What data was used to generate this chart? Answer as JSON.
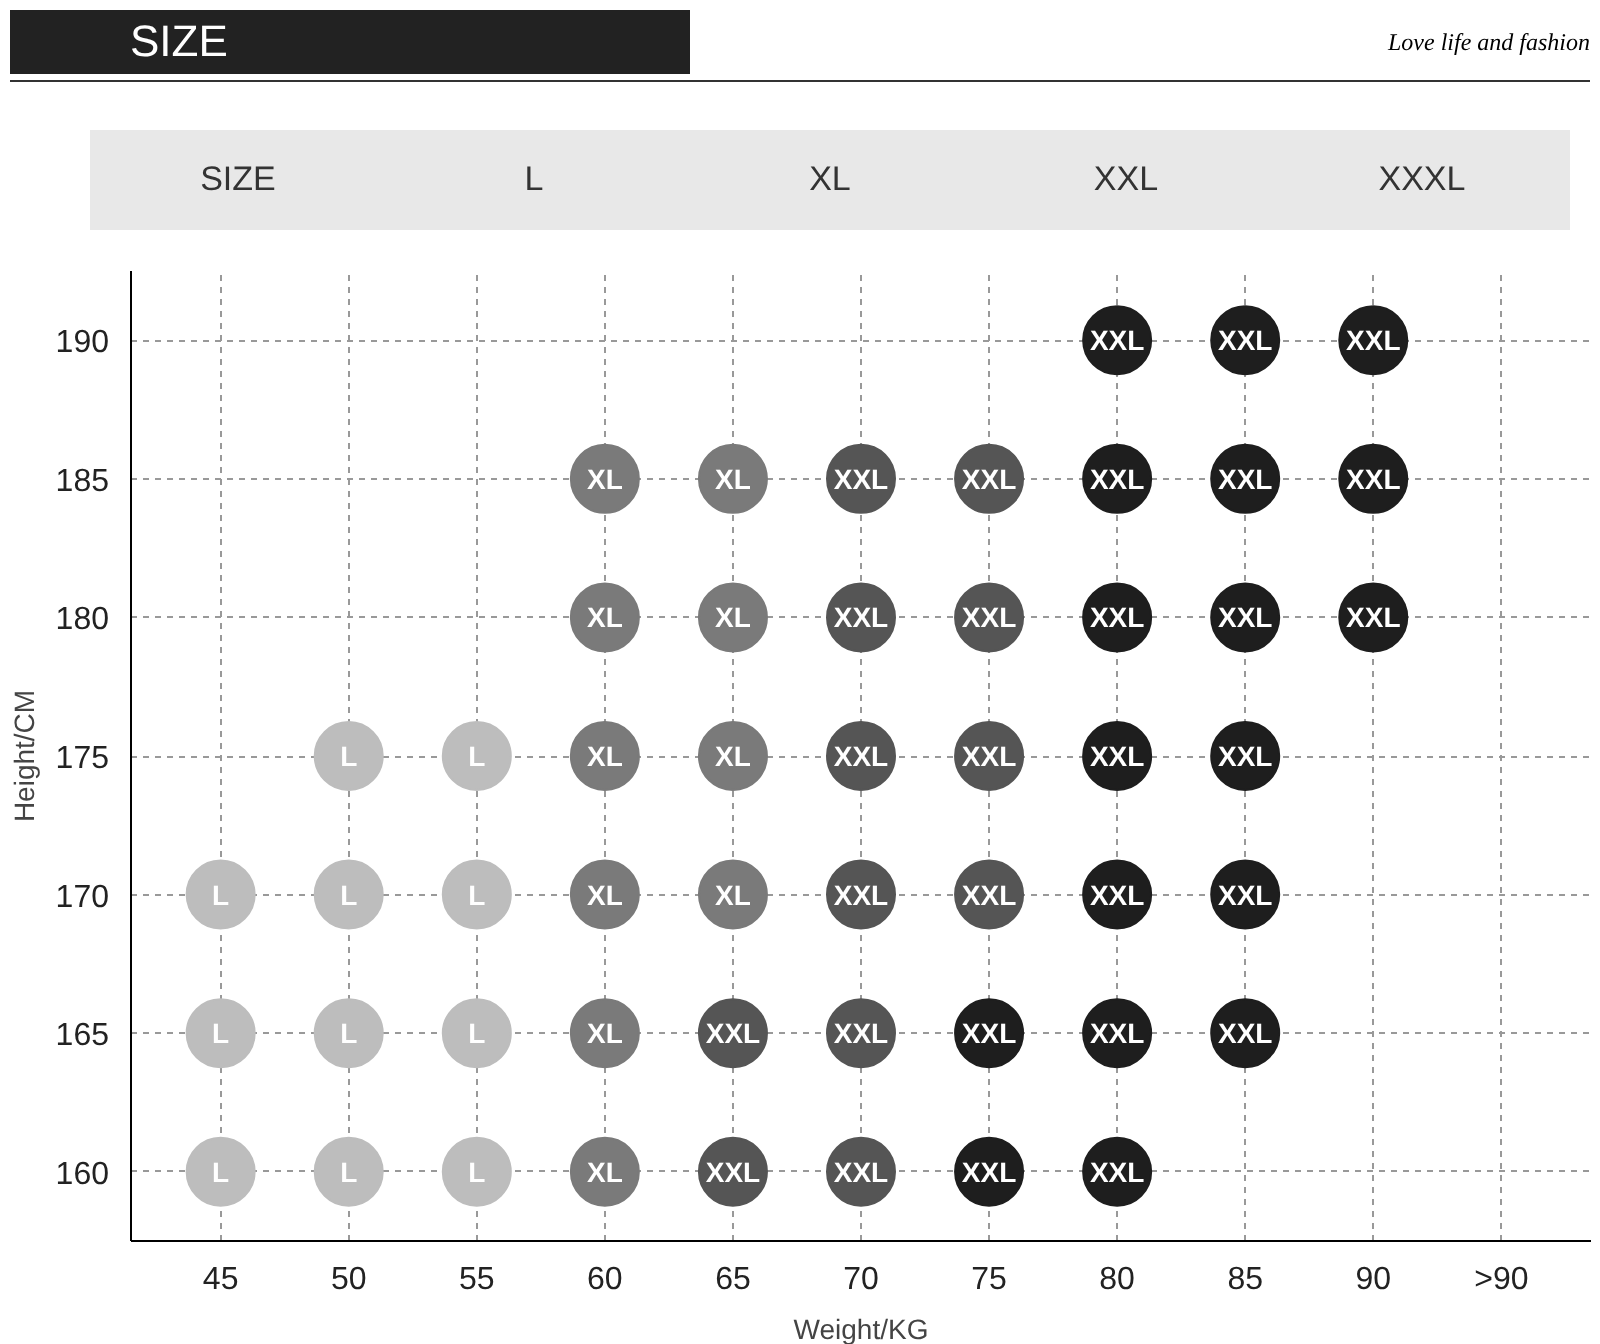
{
  "chart_data": {
    "type": "scatter",
    "title": "SIZE",
    "subtitle": "Love life and fashion",
    "annotations": [
      "SIZE",
      "L",
      "XL",
      "XXL",
      "XXXL"
    ],
    "xlabel": "Weight/KG",
    "ylabel": "Height/CM",
    "categories": [
      "45",
      "50",
      "55",
      "60",
      "65",
      "70",
      "75",
      "80",
      "85",
      "90",
      ">90"
    ],
    "ylim": [
      157.5,
      192.5
    ],
    "yticks": [
      160,
      165,
      170,
      175,
      180,
      185,
      190
    ],
    "grid": true,
    "marker": "circle",
    "series": [
      {
        "name": "L",
        "color": "#bdbdbd",
        "x": [
          "50",
          "55",
          "45",
          "50",
          "55",
          "45",
          "50",
          "55",
          "45",
          "50",
          "55"
        ],
        "values": [
          175,
          175,
          170,
          170,
          170,
          165,
          165,
          165,
          160,
          160,
          160
        ]
      },
      {
        "name": "XL",
        "color": "#7a7a7a",
        "x": [
          "60",
          "65",
          "60",
          "65",
          "60",
          "65",
          "60",
          "65",
          "60",
          "60"
        ],
        "values": [
          185,
          185,
          180,
          180,
          175,
          175,
          170,
          170,
          165,
          160
        ]
      },
      {
        "name": "XXL",
        "color": "#555555",
        "x": [
          "70",
          "75",
          "70",
          "75",
          "70",
          "75",
          "70",
          "75",
          "65",
          "70",
          "65",
          "70"
        ],
        "values": [
          185,
          185,
          180,
          180,
          175,
          175,
          170,
          170,
          165,
          165,
          160,
          160
        ]
      },
      {
        "name": "XXL",
        "color": "#1e1e1e",
        "x": [
          "80",
          "85",
          "90",
          "80",
          "85",
          "90",
          "80",
          "85",
          "90",
          "80",
          "85",
          "80",
          "85",
          "75",
          "80",
          "85",
          "75",
          "80"
        ],
        "values": [
          190,
          190,
          190,
          185,
          185,
          185,
          180,
          180,
          180,
          175,
          175,
          170,
          170,
          165,
          165,
          165,
          160,
          160
        ]
      }
    ]
  }
}
